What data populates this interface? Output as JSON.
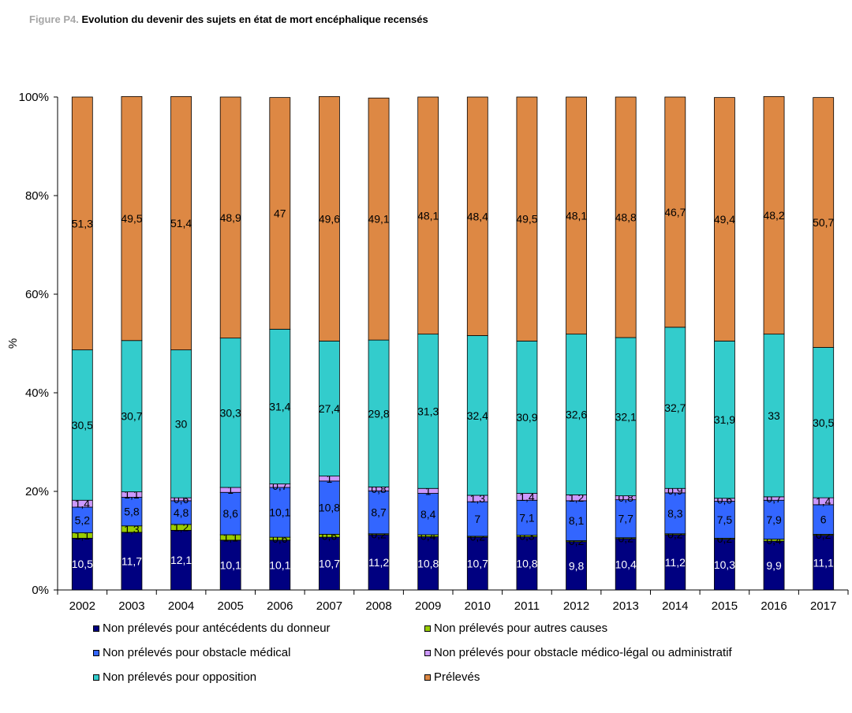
{
  "figure": {
    "number": "Figure P4.",
    "title": "Evolution du devenir des sujets en état de mort encéphalique recensés"
  },
  "chart_data": {
    "type": "bar",
    "stacked": true,
    "percent": true,
    "ylabel": "%",
    "xlabel": "",
    "ylim": [
      0,
      100
    ],
    "yticks": [
      "0%",
      "20%",
      "40%",
      "60%",
      "80%",
      "100%"
    ],
    "grid": false,
    "legend_position": "bottom",
    "categories": [
      "2002",
      "2003",
      "2004",
      "2005",
      "2006",
      "2007",
      "2008",
      "2009",
      "2010",
      "2011",
      "2012",
      "2013",
      "2014",
      "2015",
      "2016",
      "2017"
    ],
    "series": [
      {
        "name": "Non prélevés pour antécédents du donneur",
        "color": "#000080",
        "values": [
          10.5,
          11.7,
          12.1,
          10.1,
          10.1,
          10.7,
          11.2,
          10.8,
          10.7,
          10.8,
          9.8,
          10.4,
          11.2,
          10.3,
          9.9,
          11.1
        ],
        "labels": [
          "10,5",
          "11,7",
          "12,1",
          "10,1",
          "10,1",
          "10,7",
          "11,2",
          "10,8",
          "10,7",
          "10,8",
          "9,8",
          "10,4",
          "11,2",
          "10,3",
          "9,9",
          "11,1"
        ]
      },
      {
        "name": "Non prélevés pour autres causes",
        "color": "#99cc00",
        "values": [
          1.1,
          1.3,
          1.2,
          1.1,
          0.6,
          0.6,
          0.2,
          0.4,
          0.2,
          0.3,
          0.2,
          0.2,
          0.2,
          0.2,
          0.4,
          0.2
        ],
        "labels": [
          "1,1",
          "1,3",
          "1,2",
          "1,1",
          "0,6",
          "0,6",
          "0,2",
          "0,4",
          "0,2",
          "0,3",
          "0,2",
          "0,2",
          "0,2",
          "0,2",
          "0,4",
          "0,2"
        ]
      },
      {
        "name": "Non prélevés pour obstacle médical",
        "color": "#3366ff",
        "values": [
          5.2,
          5.8,
          4.8,
          8.6,
          10.1,
          10.8,
          8.7,
          8.4,
          7,
          7.1,
          8.1,
          7.7,
          8.3,
          7.5,
          7.9,
          6
        ],
        "labels": [
          "5,2",
          "5,8",
          "4,8",
          "8,6",
          "10,1",
          "10,8",
          "8,7",
          "8,4",
          "7",
          "7,1",
          "8,1",
          "7,7",
          "8,3",
          "7,5",
          "7,9",
          "6"
        ]
      },
      {
        "name": "Non prélevés pour obstacle médico-légal ou administratif",
        "color": "#cc99ff",
        "values": [
          1.4,
          1.1,
          0.6,
          1,
          0.7,
          1,
          0.8,
          1,
          1.3,
          1.4,
          1.2,
          0.8,
          0.9,
          0.6,
          0.7,
          1.4
        ],
        "labels": [
          "1,4",
          "1,1",
          "0,6",
          "1",
          "0,7",
          "1",
          "0,8",
          "1",
          "1,3",
          "1,4",
          "1,2",
          "0,8",
          "0,9",
          "0,6",
          "0,7",
          "1,4"
        ]
      },
      {
        "name": "Non prélevés pour opposition",
        "color": "#33cccc",
        "values": [
          30.5,
          30.7,
          30,
          30.3,
          31.4,
          27.4,
          29.8,
          31.3,
          32.4,
          30.9,
          32.6,
          32.1,
          32.7,
          31.9,
          33,
          30.5
        ],
        "labels": [
          "30,5",
          "30,7",
          "30",
          "30,3",
          "31,4",
          "27,4",
          "29,8",
          "31,3",
          "32,4",
          "30,9",
          "32,6",
          "32,1",
          "32,7",
          "31,9",
          "33",
          "30,5"
        ]
      },
      {
        "name": "Prélevés",
        "color": "#dd8844",
        "values": [
          51.3,
          49.5,
          51.4,
          48.9,
          47,
          49.6,
          49.1,
          48.1,
          48.4,
          49.5,
          48.1,
          48.8,
          46.7,
          49.4,
          48.2,
          50.7
        ],
        "labels": [
          "51,3",
          "49,5",
          "51,4",
          "48,9",
          "47",
          "49,6",
          "49,1",
          "48,1",
          "48,4",
          "49,5",
          "48,1",
          "48,8",
          "46,7",
          "49,4",
          "48,2",
          "50,7"
        ]
      }
    ]
  }
}
